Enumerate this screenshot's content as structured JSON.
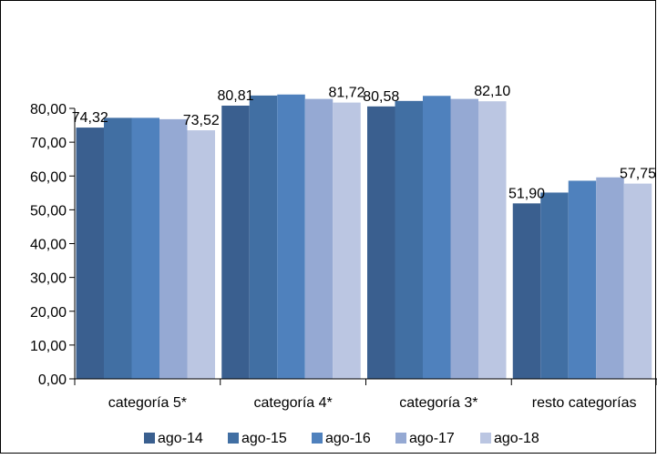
{
  "chart_data": {
    "type": "bar",
    "title": "",
    "xlabel": "",
    "ylabel": "",
    "categories": [
      "categoría 5*",
      "categoría 4*",
      "categoría 3*",
      "resto categorías"
    ],
    "series": [
      {
        "name": "ago-14",
        "color": "#3a5f8f",
        "values": [
          74.32,
          80.81,
          80.58,
          51.9
        ]
      },
      {
        "name": "ago-15",
        "color": "#416fa3",
        "values": [
          77.2,
          83.8,
          82.2,
          55.1
        ]
      },
      {
        "name": "ago-16",
        "color": "#4f81bd",
        "values": [
          77.2,
          84.1,
          83.7,
          58.6
        ]
      },
      {
        "name": "ago-17",
        "color": "#95a9d3",
        "values": [
          76.8,
          82.8,
          82.8,
          59.6
        ]
      },
      {
        "name": "ago-18",
        "color": "#bbc6e2",
        "values": [
          73.52,
          81.72,
          82.1,
          57.75
        ]
      }
    ],
    "data_labels": [
      {
        "category": 0,
        "series": 0,
        "text": "74,32"
      },
      {
        "category": 0,
        "series": 4,
        "text": "73,52"
      },
      {
        "category": 1,
        "series": 0,
        "text": "80,81"
      },
      {
        "category": 1,
        "series": 4,
        "text": "81,72"
      },
      {
        "category": 2,
        "series": 0,
        "text": "80,58"
      },
      {
        "category": 2,
        "series": 4,
        "text": "82,10"
      },
      {
        "category": 3,
        "series": 0,
        "text": "51,90"
      },
      {
        "category": 3,
        "series": 4,
        "text": "57,75"
      }
    ],
    "ylim": [
      0,
      80
    ],
    "yticks": [
      "0,00",
      "10,00",
      "20,00",
      "30,00",
      "40,00",
      "50,00",
      "60,00",
      "70,00",
      "80,00"
    ],
    "legend_position": "bottom",
    "grid": false
  }
}
